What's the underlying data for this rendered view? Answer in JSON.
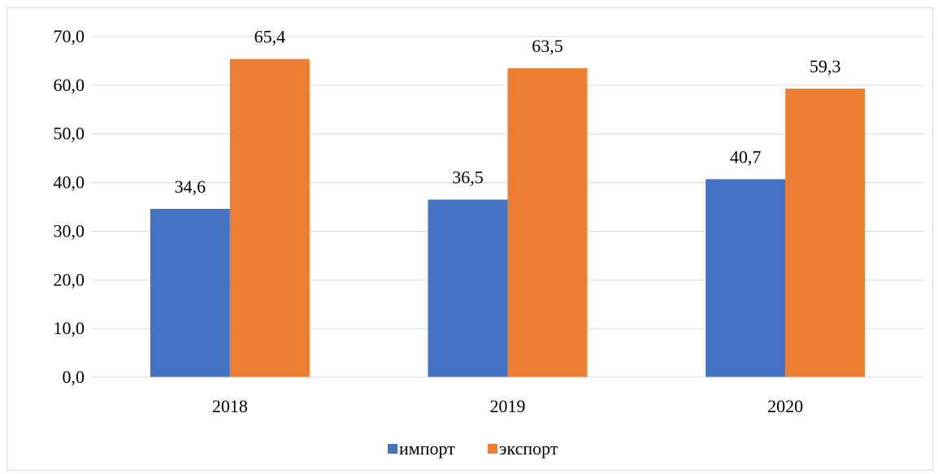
{
  "chart_data": {
    "type": "bar",
    "categories": [
      "2018",
      "2019",
      "2020"
    ],
    "series": [
      {
        "name": "импорт",
        "values": [
          34.6,
          36.5,
          40.7
        ],
        "color": "#4472C4"
      },
      {
        "name": "экспорт",
        "values": [
          65.4,
          63.5,
          59.3
        ],
        "color": "#ED7D31"
      }
    ],
    "data_labels": [
      [
        "34,6",
        "36,5",
        "40,7"
      ],
      [
        "65,4",
        "63,5",
        "59,3"
      ]
    ],
    "ylim": [
      0,
      70
    ],
    "yticks": [
      0,
      10,
      20,
      30,
      40,
      50,
      60,
      70
    ],
    "ytick_labels": [
      "0,0",
      "10,0",
      "20,0",
      "30,0",
      "40,0",
      "50,0",
      "60,0",
      "70,0"
    ],
    "grid": true,
    "grid_color": "#d9d9d9",
    "legend_position": "bottom"
  }
}
